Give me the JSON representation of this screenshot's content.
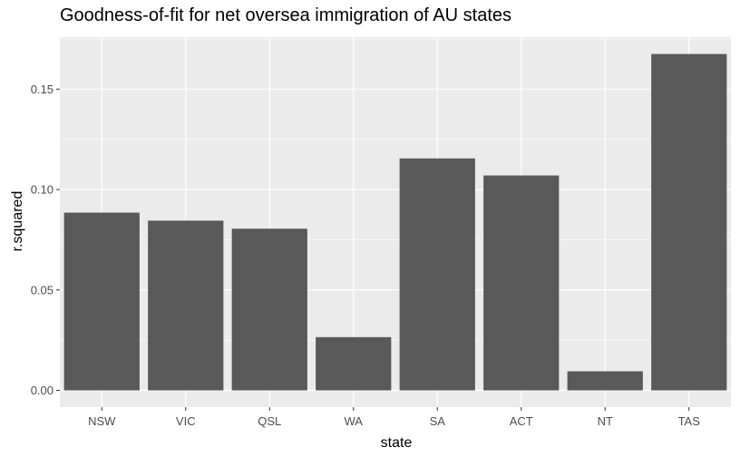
{
  "chart_data": {
    "type": "bar",
    "title": "Goodness-of-fit for net oversea immigration of AU states",
    "xlabel": "state",
    "ylabel": "r.squared",
    "categories": [
      "NSW",
      "VIC",
      "QSL",
      "WA",
      "SA",
      "ACT",
      "NT",
      "TAS"
    ],
    "values": [
      0.0885,
      0.0845,
      0.0805,
      0.0265,
      0.1155,
      0.107,
      0.0095,
      0.1675
    ],
    "ylim": [
      -0.00835,
      0.175875
    ],
    "yticks": [
      0.0,
      0.05,
      0.1,
      0.15
    ],
    "ytick_labels": [
      "0.00",
      "0.05",
      "0.10",
      "0.15"
    ],
    "grid": true,
    "legend": "none",
    "colors": {
      "bar": "#595959",
      "panel": "#ebebeb",
      "grid": "#ffffff",
      "tick_text": "#4d4d4d",
      "tick_mark": "#333333"
    }
  }
}
